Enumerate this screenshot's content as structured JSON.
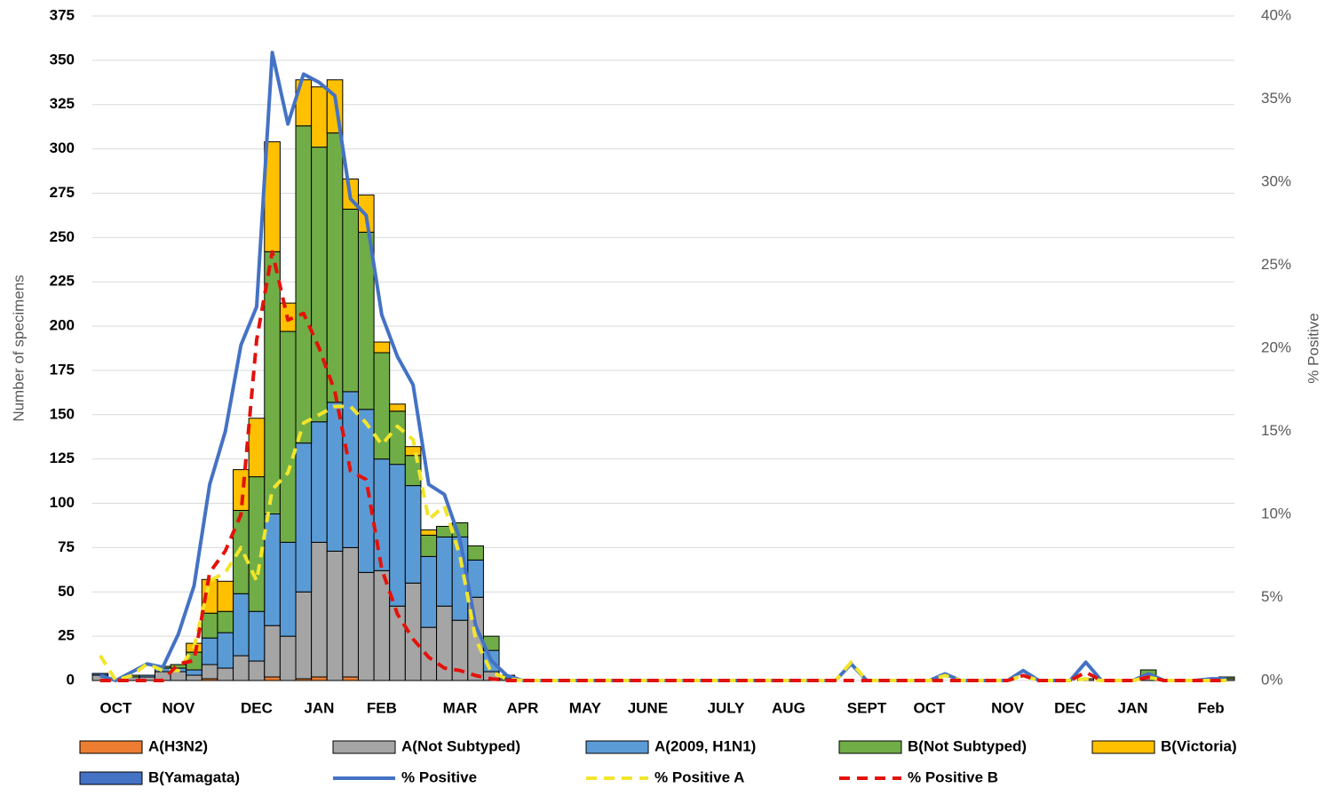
{
  "chart_data": {
    "type": "bar",
    "y_label": "Number of specimens",
    "y2_label": "% Positive",
    "categories": [
      null,
      "OCT",
      null,
      null,
      null,
      "NOV",
      null,
      null,
      null,
      null,
      "DEC",
      null,
      null,
      null,
      "JAN",
      null,
      null,
      null,
      "FEB",
      null,
      null,
      null,
      null,
      "MAR",
      null,
      null,
      null,
      "APR",
      null,
      null,
      null,
      "MAY",
      null,
      null,
      null,
      "JUNE",
      null,
      null,
      null,
      null,
      "JULY",
      null,
      null,
      null,
      "AUG",
      null,
      null,
      null,
      null,
      "SEPT",
      null,
      null,
      null,
      "OCT",
      null,
      null,
      null,
      null,
      "NOV",
      null,
      null,
      null,
      "DEC",
      null,
      null,
      null,
      "JAN",
      null,
      null,
      null,
      null,
      "Feb",
      null
    ],
    "ylim": [
      0,
      375
    ],
    "yticks": [
      0,
      25,
      50,
      75,
      100,
      125,
      150,
      175,
      200,
      225,
      250,
      275,
      300,
      325,
      350,
      375
    ],
    "y2lim": [
      0,
      40
    ],
    "y2ticks": [
      {
        "value": 0,
        "label": "0%"
      },
      {
        "value": 5,
        "label": "5%"
      },
      {
        "value": 10,
        "label": "10%"
      },
      {
        "value": 15,
        "label": "15%"
      },
      {
        "value": 20,
        "label": "20%"
      },
      {
        "value": 25,
        "label": "25%"
      },
      {
        "value": 30,
        "label": "30%"
      },
      {
        "value": 35,
        "label": "35%"
      },
      {
        "value": 40,
        "label": "40%"
      }
    ],
    "grid": true,
    "legend": "bottom",
    "series": [
      {
        "name": "A(H3N2)",
        "color": "#ed7d31",
        "values": [
          0,
          0,
          0,
          0,
          0,
          0,
          0,
          1,
          0,
          0,
          0,
          2,
          0,
          1,
          2,
          0,
          2,
          0,
          0,
          0,
          0,
          0,
          0,
          0,
          0,
          0,
          0,
          0,
          0,
          0,
          0,
          0,
          0,
          0,
          0,
          0,
          0,
          0,
          0,
          0,
          0,
          0,
          0,
          0,
          0,
          0,
          0,
          0,
          0,
          0,
          0,
          0,
          0,
          0,
          0,
          0,
          0,
          0,
          0,
          0,
          0,
          0,
          0,
          0,
          0,
          0,
          0,
          0,
          0,
          0,
          0,
          0,
          0
        ]
      },
      {
        "name": "A(Not  Subtyped)",
        "color": "#a5a5a5",
        "values": [
          3,
          1,
          2,
          2,
          5,
          5,
          3,
          8,
          7,
          14,
          11,
          29,
          25,
          49,
          76,
          73,
          73,
          61,
          62,
          42,
          55,
          30,
          42,
          34,
          47,
          5,
          1,
          0,
          0,
          0,
          0,
          0,
          0,
          0,
          0,
          0,
          0,
          0,
          0,
          0,
          0,
          0,
          0,
          0,
          0,
          0,
          0,
          0,
          0,
          0,
          0,
          0,
          0,
          0,
          0,
          0,
          0,
          0,
          0,
          0,
          0,
          0,
          0,
          1,
          0,
          0,
          0,
          2,
          0,
          0,
          0,
          0,
          1
        ]
      },
      {
        "name": "A(2009, H1N1)",
        "color": "#5b9bd5",
        "values": [
          0,
          0,
          0,
          1,
          2,
          2,
          3,
          15,
          20,
          35,
          28,
          63,
          53,
          84,
          68,
          84,
          88,
          92,
          63,
          80,
          55,
          40,
          39,
          47,
          21,
          12,
          1,
          0,
          0,
          0,
          0,
          0,
          0,
          0,
          0,
          0,
          0,
          0,
          0,
          0,
          0,
          0,
          0,
          0,
          0,
          0,
          0,
          0,
          0,
          0,
          0,
          0,
          0,
          0,
          0,
          0,
          0,
          0,
          0,
          0,
          0,
          0,
          0,
          0,
          0,
          0,
          0,
          0,
          0,
          0,
          0,
          0,
          0
        ]
      },
      {
        "name": "B(Not Subtyped)",
        "color": "#70ad47",
        "values": [
          0,
          0,
          1,
          0,
          1,
          2,
          10,
          14,
          12,
          47,
          76,
          148,
          119,
          179,
          155,
          152,
          103,
          100,
          60,
          30,
          17,
          12,
          6,
          8,
          8,
          8,
          1,
          0,
          0,
          0,
          0,
          0,
          0,
          0,
          0,
          0,
          0,
          0,
          0,
          0,
          0,
          0,
          0,
          0,
          0,
          0,
          0,
          0,
          0,
          0,
          0,
          0,
          0,
          0,
          0,
          0,
          0,
          0,
          0,
          0,
          0,
          0,
          0,
          0,
          0,
          0,
          0,
          4,
          0,
          0,
          0,
          0,
          1
        ]
      },
      {
        "name": "B(Victoria)",
        "color": "#ffc000",
        "values": [
          0,
          0,
          0,
          0,
          0,
          0,
          5,
          19,
          17,
          23,
          33,
          62,
          16,
          26,
          34,
          30,
          17,
          21,
          6,
          4,
          5,
          3,
          0,
          0,
          0,
          0,
          0,
          0,
          0,
          0,
          0,
          0,
          0,
          0,
          0,
          0,
          0,
          0,
          0,
          0,
          0,
          0,
          0,
          0,
          0,
          0,
          0,
          0,
          0,
          0,
          0,
          0,
          0,
          0,
          0,
          0,
          0,
          0,
          0,
          0,
          0,
          0,
          0,
          0,
          0,
          0,
          0,
          0,
          0,
          0,
          0,
          0,
          0
        ]
      },
      {
        "name": "B(Yamagata)",
        "color": "#4472c4",
        "values": [
          1,
          0,
          0,
          0,
          0,
          0,
          0,
          0,
          0,
          0,
          0,
          0,
          0,
          0,
          0,
          0,
          0,
          0,
          0,
          0,
          0,
          0,
          0,
          0,
          0,
          0,
          0,
          0,
          0,
          0,
          0,
          0,
          0,
          0,
          0,
          0,
          0,
          0,
          0,
          0,
          0,
          0,
          0,
          0,
          0,
          0,
          0,
          0,
          0,
          0,
          0,
          0,
          0,
          0,
          0,
          0,
          0,
          0,
          0,
          0,
          0,
          0,
          0,
          0,
          0,
          0,
          0,
          0,
          0,
          0,
          0,
          0,
          0
        ]
      },
      {
        "name": "% Positive",
        "type": "line",
        "axis": "y2",
        "color": "#4472c4",
        "dash": "solid",
        "values": [
          0.3,
          0,
          0.5,
          1.0,
          0.8,
          2.8,
          5.7,
          11.8,
          15,
          20.2,
          22.5,
          37.8,
          33.5,
          36.5,
          36,
          35.2,
          29,
          28,
          22,
          19.5,
          17.8,
          11.8,
          11.2,
          8.5,
          3.3,
          1.2,
          0.3,
          0,
          0,
          0,
          0,
          0,
          0,
          0,
          0,
          0,
          0,
          0,
          0,
          0,
          0,
          0,
          0,
          0,
          0,
          0,
          0,
          0,
          1.0,
          0,
          0,
          0,
          0,
          0,
          0.4,
          0,
          0,
          0,
          0,
          0.6,
          0,
          0,
          0,
          1.1,
          0,
          0,
          0,
          0.4,
          0,
          0,
          0,
          0.1,
          0.1
        ]
      },
      {
        "name": "% Positive A",
        "type": "line",
        "axis": "y2",
        "color": "#f2e52a",
        "dash": "dashed",
        "values": [
          1.5,
          0,
          0.3,
          1.0,
          0.6,
          0.6,
          2.0,
          6,
          6.5,
          8,
          6,
          11.5,
          12.5,
          15.5,
          16,
          16.5,
          16.5,
          15.5,
          14.2,
          15.3,
          14.5,
          9.7,
          10.5,
          7.5,
          2.5,
          0.5,
          0.1,
          0,
          0,
          0,
          0,
          0,
          0,
          0,
          0,
          0,
          0,
          0,
          0,
          0,
          0,
          0,
          0,
          0,
          0,
          0,
          0,
          0,
          1.1,
          0,
          0,
          0,
          0,
          0,
          0.3,
          0,
          0,
          0,
          0,
          0.3,
          0,
          0,
          0,
          0.1,
          0,
          0,
          0,
          0.2,
          0,
          0,
          0,
          0,
          0
        ]
      },
      {
        "name": "% Positive B",
        "type": "line",
        "axis": "y2",
        "color": "#e3120b",
        "dash": "dashed",
        "values": [
          0,
          0,
          0,
          0,
          0,
          1,
          1.2,
          6.5,
          7.8,
          10,
          20.5,
          25.8,
          21.7,
          22.1,
          20,
          17.4,
          12.6,
          12.1,
          6.7,
          4,
          2.5,
          1.4,
          0.75,
          0.6,
          0.3,
          0.1,
          0,
          0,
          0,
          0,
          0,
          0,
          0,
          0,
          0,
          0,
          0,
          0,
          0,
          0,
          0,
          0,
          0,
          0,
          0,
          0,
          0,
          0,
          0,
          0,
          0,
          0,
          0,
          0,
          0,
          0,
          0,
          0,
          0,
          0.3,
          0,
          0,
          0,
          0.5,
          0,
          0,
          0,
          0.2,
          0,
          0,
          0,
          0,
          0
        ]
      }
    ]
  }
}
